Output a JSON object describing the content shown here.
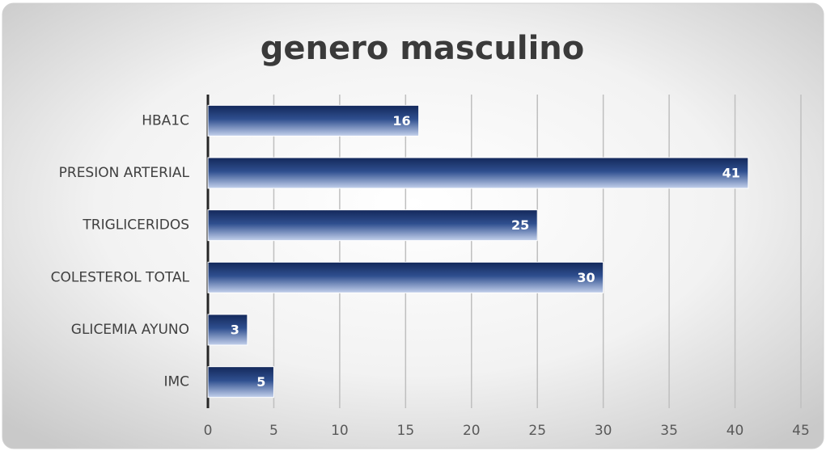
{
  "chart_data": {
    "type": "bar",
    "orientation": "horizontal",
    "title": "genero masculino",
    "categories": [
      "HBA1C",
      "PRESION ARTERIAL",
      "TRIGLICERIDOS",
      "COLESTEROL TOTAL",
      "GLICEMIA AYUNO",
      "IMC"
    ],
    "values": [
      16,
      41,
      25,
      30,
      3,
      5
    ],
    "color": "#1f3a73",
    "xlim": [
      0,
      45
    ],
    "xticks": [
      0,
      5,
      10,
      15,
      20,
      25,
      30,
      35,
      40,
      45
    ],
    "grid": true
  }
}
